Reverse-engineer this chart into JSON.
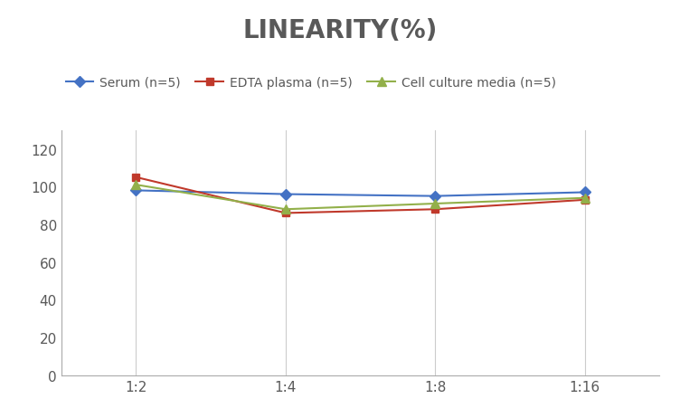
{
  "title": "LINEARITY(%)",
  "title_fontsize": 20,
  "title_fontweight": "bold",
  "title_color": "#595959",
  "x_labels": [
    "1:2",
    "1:4",
    "1:8",
    "1:16"
  ],
  "x_positions": [
    0,
    1,
    2,
    3
  ],
  "series": [
    {
      "label": "Serum (n=5)",
      "values": [
        98,
        96,
        95,
        97
      ],
      "color": "#4472C4",
      "marker": "D",
      "markersize": 6,
      "linewidth": 1.5
    },
    {
      "label": "EDTA plasma (n=5)",
      "values": [
        105,
        86,
        88,
        93
      ],
      "color": "#C0392B",
      "marker": "s",
      "markersize": 6,
      "linewidth": 1.5
    },
    {
      "label": "Cell culture media (n=5)",
      "values": [
        101,
        88,
        91,
        94
      ],
      "color": "#92B04A",
      "marker": "^",
      "markersize": 7,
      "linewidth": 1.5
    }
  ],
  "ylim": [
    0,
    130
  ],
  "yticks": [
    0,
    20,
    40,
    60,
    80,
    100,
    120
  ],
  "grid_color": "#CCCCCC",
  "background_color": "#FFFFFF",
  "legend_fontsize": 10,
  "tick_fontsize": 11,
  "tick_color": "#595959",
  "spine_color": "#AAAAAA"
}
